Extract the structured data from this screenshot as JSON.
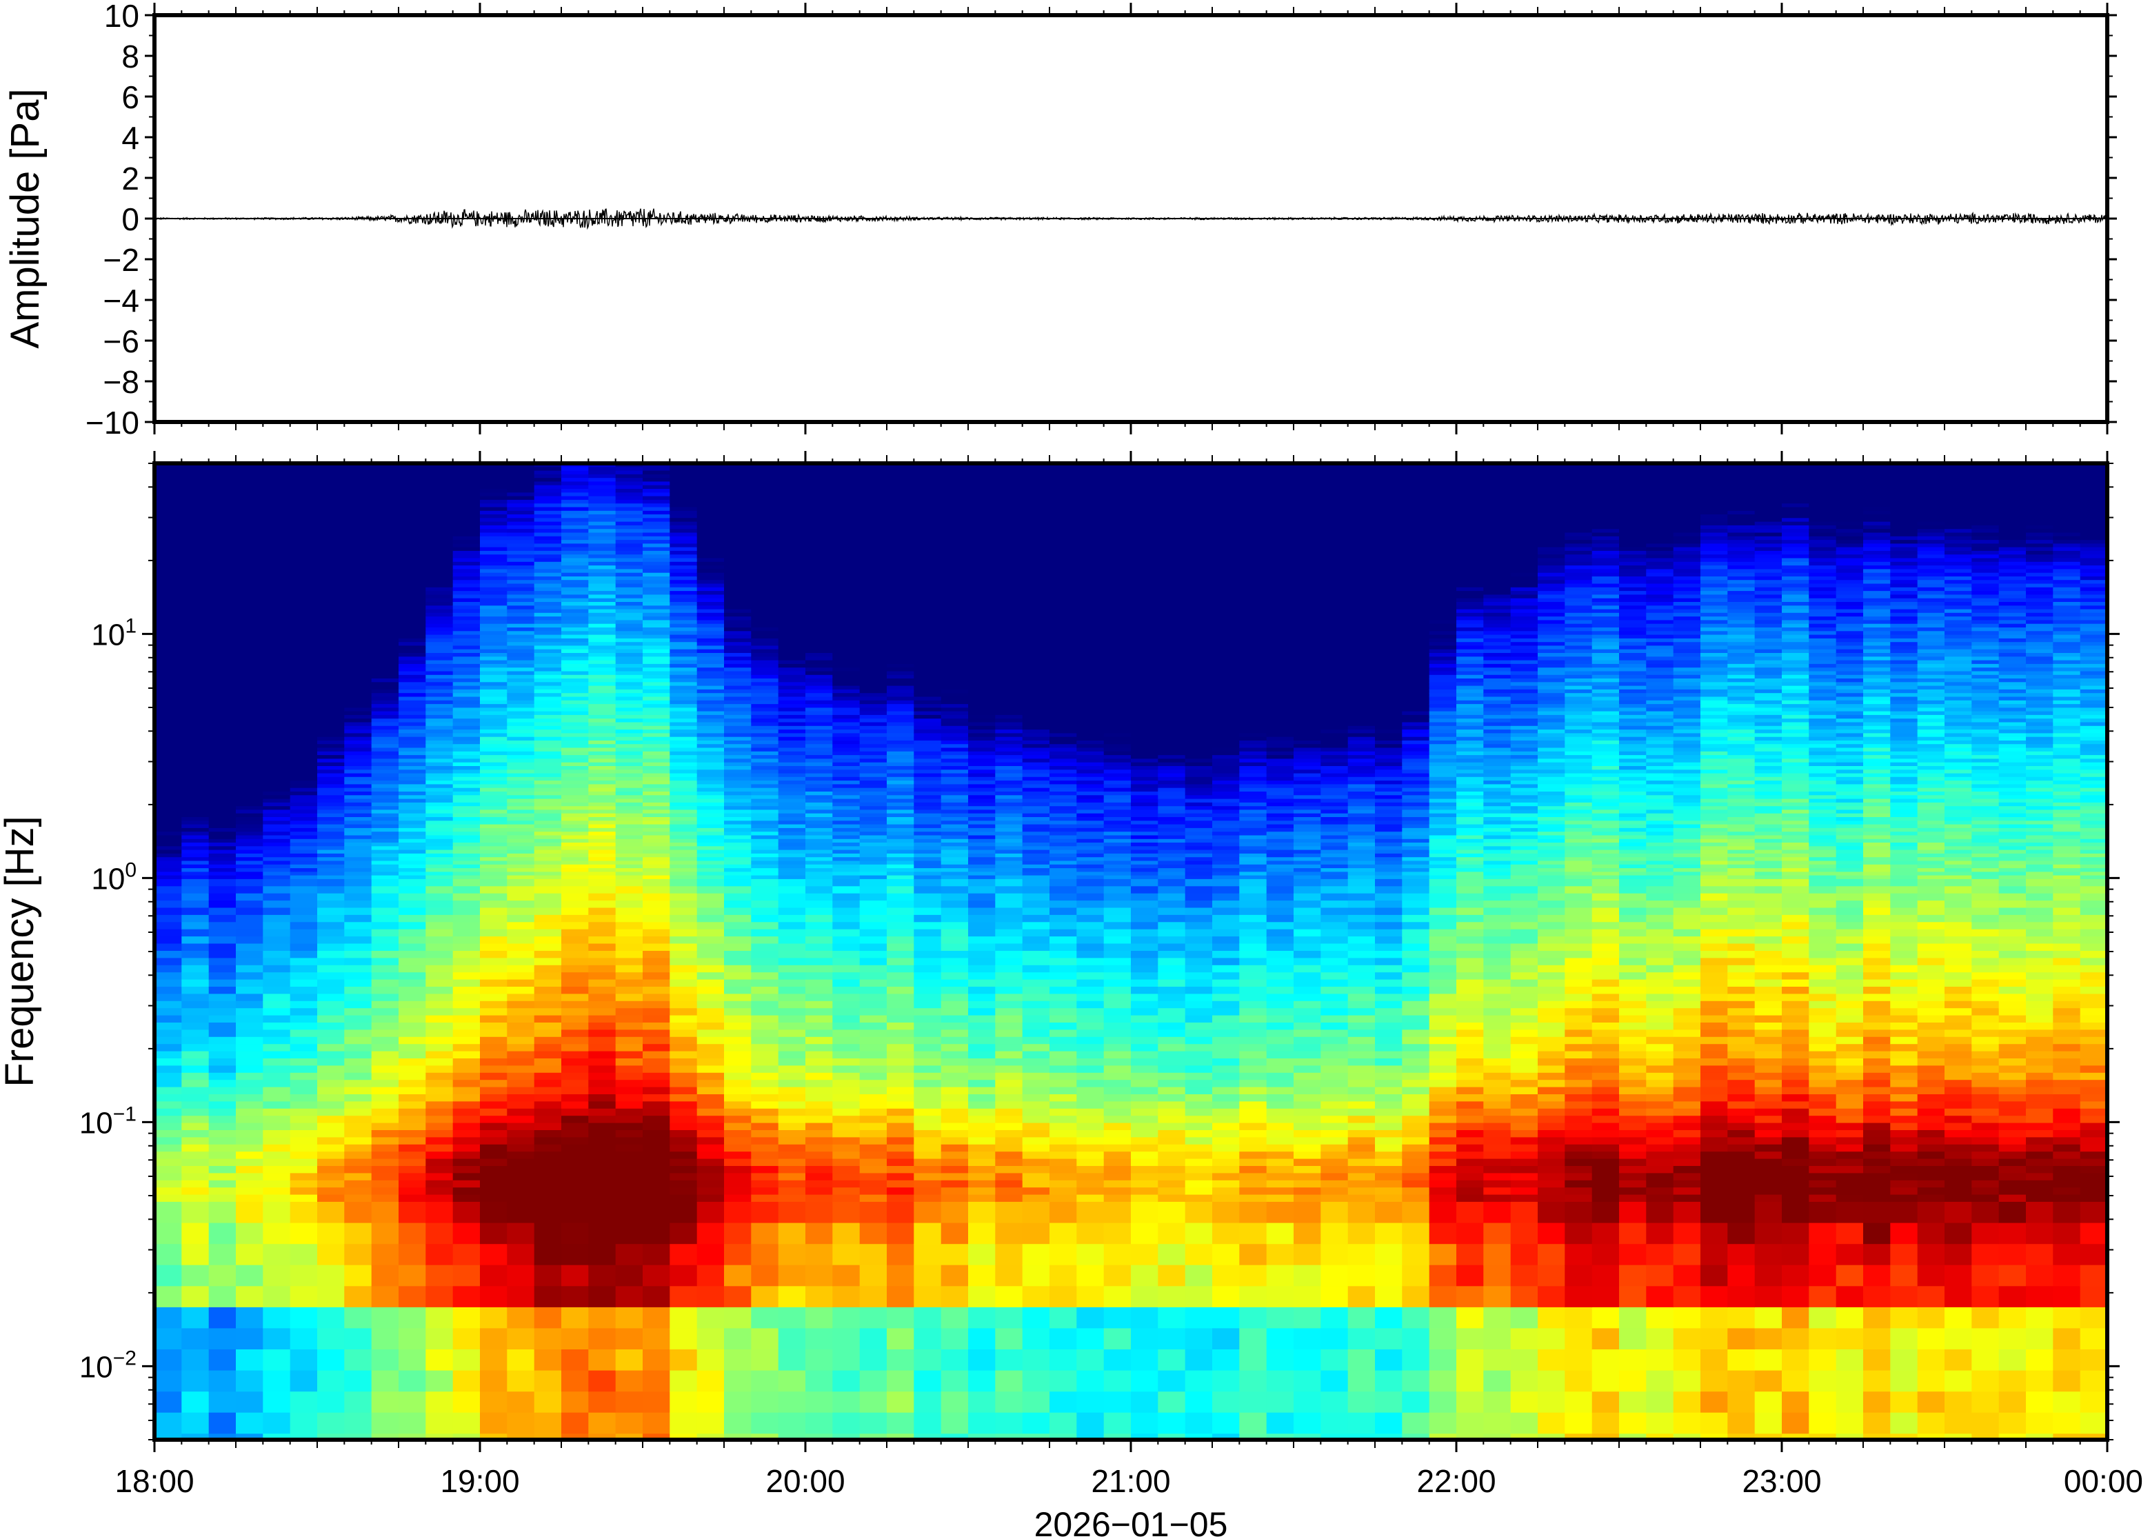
{
  "chart_data": [
    {
      "type": "line",
      "panel": "waveform",
      "ylabel": "Amplitude [Pa]",
      "ylim": [
        -10,
        10
      ],
      "yticks": [
        -10,
        -8,
        -6,
        -4,
        -2,
        0,
        2,
        4,
        6,
        8,
        10
      ],
      "ytick_labels": [
        "−10",
        "−8",
        "−6",
        "−4",
        "−2",
        "0",
        "2",
        "4",
        "6",
        "8",
        "10"
      ],
      "x_range_hours": [
        18,
        24
      ],
      "envelope": {
        "x_hours": [
          18.0,
          18.3,
          18.6,
          18.7,
          18.8,
          18.9,
          19.0,
          19.2,
          19.4,
          19.5,
          19.6,
          19.8,
          20.0,
          20.2,
          20.4,
          20.8,
          21.2,
          21.6,
          21.9,
          22.0,
          22.3,
          22.6,
          22.9,
          23.2,
          23.5,
          23.8,
          24.0
        ],
        "amplitude_pa": [
          0.05,
          0.05,
          0.08,
          0.15,
          0.3,
          0.5,
          0.45,
          0.5,
          0.55,
          0.6,
          0.4,
          0.25,
          0.2,
          0.15,
          0.08,
          0.06,
          0.06,
          0.06,
          0.08,
          0.15,
          0.2,
          0.25,
          0.3,
          0.3,
          0.3,
          0.3,
          0.25
        ]
      },
      "line_color": "#000000"
    },
    {
      "type": "heatmap",
      "panel": "spectrogram",
      "ylabel": "Frequency [Hz]",
      "yscale": "log",
      "ylim": [
        0.005,
        50
      ],
      "yticks": [
        0.01,
        0.1,
        1,
        10
      ],
      "ytick_labels": [
        {
          "base": "10",
          "exp": "−2"
        },
        {
          "base": "10",
          "exp": "−1"
        },
        {
          "base": "10",
          "exp": "0"
        },
        {
          "base": "10",
          "exp": "1"
        }
      ],
      "xlabel": "2026−01−05",
      "xticks_hours": [
        18,
        19,
        20,
        21,
        22,
        23,
        24
      ],
      "xtick_labels": [
        "18:00",
        "19:00",
        "20:00",
        "21:00",
        "22:00",
        "23:00",
        "00:00"
      ],
      "colormap": "jet",
      "activity_profile": {
        "x_hours": [
          18.0,
          18.4,
          18.75,
          19.0,
          19.3,
          19.6,
          19.8,
          20.0,
          20.3,
          20.6,
          20.9,
          21.2,
          21.5,
          21.85,
          22.0,
          22.3,
          22.7,
          23.0,
          23.4,
          23.8,
          24.0
        ],
        "relative_level": [
          0.1,
          0.18,
          0.45,
          0.82,
          0.95,
          0.85,
          0.55,
          0.5,
          0.42,
          0.35,
          0.3,
          0.28,
          0.3,
          0.32,
          0.6,
          0.72,
          0.76,
          0.78,
          0.77,
          0.75,
          0.72
        ]
      }
    }
  ]
}
